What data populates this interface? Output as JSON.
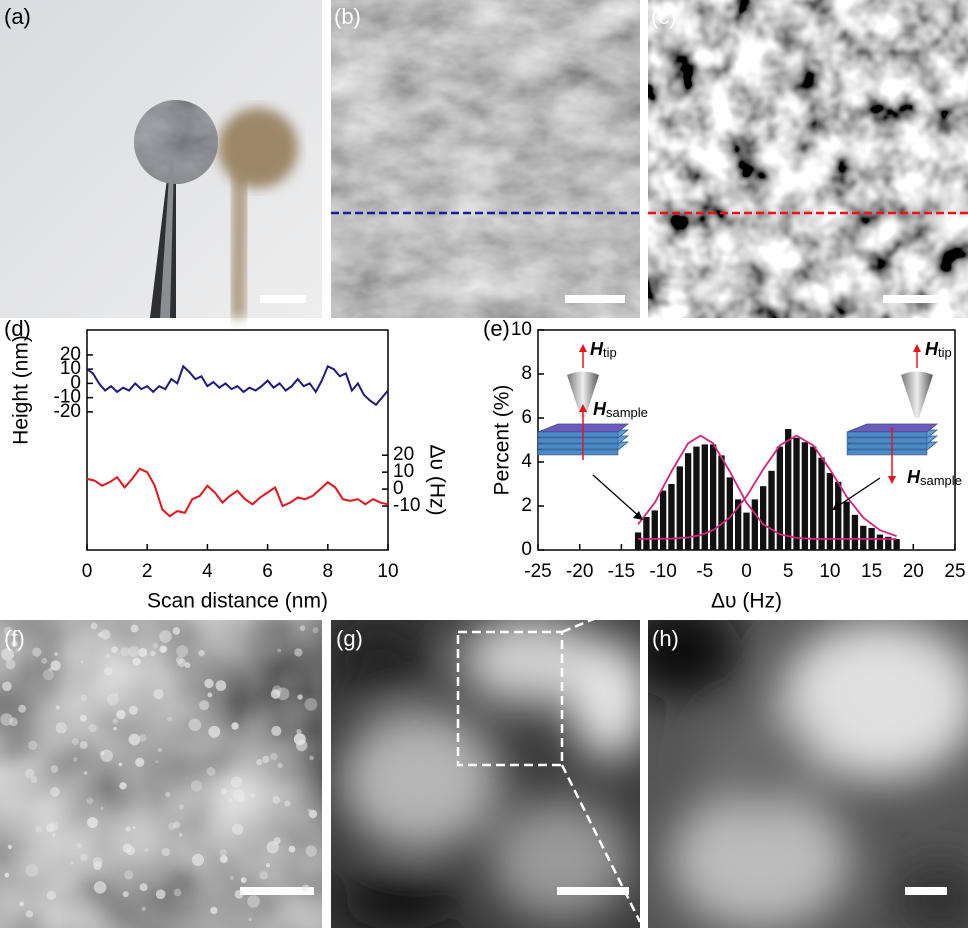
{
  "panel_labels": [
    "(a)",
    "(b)",
    "(c)",
    "(f)",
    "(g)",
    "(h)"
  ],
  "chart_data": [
    {
      "type": "line",
      "panel": "(d)",
      "xlabel": "Scan distance (nm)",
      "ylabel": "Height (nm)",
      "y2label": "Δυ (Hz)",
      "xlim": [
        0,
        10
      ],
      "xticks": [
        0,
        2,
        4,
        6,
        8,
        10
      ],
      "ylim": [
        -117,
        37.5
      ],
      "yticks": [
        20,
        10,
        0,
        -10,
        -20
      ],
      "y2lim": [
        -36,
        94
      ],
      "y2ticks": [
        20,
        10,
        0,
        -10
      ],
      "series": [
        {
          "color": "#1f1a80",
          "x": [
            0,
            0.2,
            0.4,
            0.6,
            0.8,
            1,
            1.2,
            1.4,
            1.6,
            1.8,
            2,
            2.2,
            2.4,
            2.6,
            2.8,
            3,
            3.2,
            3.4,
            3.6,
            3.8,
            4,
            4.2,
            4.4,
            4.6,
            4.8,
            5,
            5.2,
            5.4,
            5.6,
            5.8,
            6,
            6.2,
            6.4,
            6.6,
            6.8,
            7,
            7.2,
            7.4,
            7.6,
            7.8,
            8,
            8.2,
            8.4,
            8.6,
            8.8,
            9,
            9.2,
            9.4,
            9.6,
            9.8,
            10
          ],
          "values": [
            10,
            7,
            0,
            -5,
            -2,
            -6,
            -3,
            -5,
            0,
            -4,
            -2,
            -6,
            -2,
            -4,
            3,
            0,
            12,
            8,
            3,
            5,
            -2,
            1,
            -3,
            0,
            -4,
            -2,
            -6,
            -3,
            -5,
            -2,
            2,
            -3,
            0,
            -5,
            -2,
            3,
            -2,
            0,
            -6,
            2,
            12,
            10,
            5,
            7,
            -5,
            0,
            -8,
            -12,
            -15,
            -10,
            -5
          ]
        },
        {
          "color": "#e8141c",
          "axis": "y2",
          "x": [
            0,
            0.25,
            0.5,
            0.75,
            1,
            1.25,
            1.5,
            1.75,
            2,
            2.25,
            2.5,
            2.75,
            3,
            3.25,
            3.5,
            3.75,
            4,
            4.25,
            4.5,
            4.75,
            5,
            5.25,
            5.5,
            5.75,
            6,
            6.25,
            6.5,
            6.75,
            7,
            7.25,
            7.5,
            7.75,
            8,
            8.25,
            8.5,
            8.75,
            9,
            9.25,
            9.5,
            9.75,
            10
          ],
          "values": [
            6,
            5,
            2,
            4,
            7,
            1,
            6,
            12,
            10,
            2,
            -12,
            -16,
            -13,
            -14,
            -6,
            -4,
            2,
            -2,
            -8,
            -4,
            -1,
            -6,
            -9,
            -5,
            -2,
            1,
            -10,
            -8,
            -5,
            -6,
            -4,
            0,
            4,
            1,
            -6,
            -7,
            -6,
            -9,
            -6,
            -8,
            -9
          ]
        }
      ]
    },
    {
      "type": "histogram",
      "panel": "(e)",
      "xlabel": "Δυ (Hz)",
      "ylabel": "Percent (%)",
      "xlim": [
        -25,
        25
      ],
      "xticks": [
        -25,
        -20,
        -15,
        -10,
        -5,
        0,
        5,
        10,
        15,
        20,
        25
      ],
      "ylim": [
        0,
        10
      ],
      "yticks": [
        0,
        2,
        4,
        6,
        8,
        10
      ],
      "color": "#111111",
      "bins": [
        -13.5,
        -12.5,
        -11.5,
        -10.5,
        -9.5,
        -8.5,
        -7.5,
        -6.5,
        -5.5,
        -4.5,
        -3.5,
        -2.5,
        -1.5,
        -0.5,
        0.5,
        1.5,
        2.5,
        3.5,
        4.5,
        5.5,
        6.5,
        7.5,
        8.5,
        9.5,
        10.5,
        11.5,
        12.5,
        13.5,
        14.5,
        15.5,
        16.5,
        17.5,
        18.5
      ],
      "values": [
        0.8,
        1.5,
        1.8,
        2.7,
        3.0,
        3.8,
        4.4,
        4.7,
        4.8,
        4.8,
        4.3,
        3.3,
        2.3,
        1.7,
        2.3,
        2.9,
        3.6,
        4.7,
        5.5,
        5.1,
        4.9,
        4.7,
        4.2,
        3.5,
        3.1,
        2.2,
        1.6,
        1.1,
        1.0,
        0.7,
        0.6,
        0.5
      ],
      "fits": [
        {
          "color": "#d6237c",
          "x": [
            -13,
            -11,
            -9,
            -7,
            -5.5,
            -4,
            -2,
            0,
            2,
            4,
            6,
            8,
            10,
            12,
            14,
            16,
            18
          ],
          "values": [
            1.17,
            2.15,
            3.57,
            4.85,
            5.2,
            4.85,
            3.57,
            2.15,
            1.17,
            0.71,
            0.55,
            0.5,
            0.5,
            0.5,
            0.5,
            0.5,
            0.5
          ]
        },
        {
          "color": "#d6237c",
          "x": [
            -13,
            -11,
            -9,
            -7,
            -5.5,
            -4,
            -2,
            0,
            2,
            4,
            6,
            8,
            10,
            12,
            14,
            16,
            18
          ],
          "values": [
            0.5,
            0.5,
            0.52,
            0.57,
            0.68,
            0.9,
            1.47,
            2.43,
            3.67,
            4.76,
            5.2,
            4.76,
            3.67,
            2.43,
            1.47,
            0.9,
            0.63
          ]
        }
      ],
      "insets": [
        {
          "symbol": "H",
          "sub": "tip"
        },
        {
          "symbol": "H",
          "sub": "sample"
        },
        {
          "symbol": "H",
          "sub": "tip"
        },
        {
          "symbol": "H",
          "sub": "sample"
        }
      ]
    }
  ]
}
